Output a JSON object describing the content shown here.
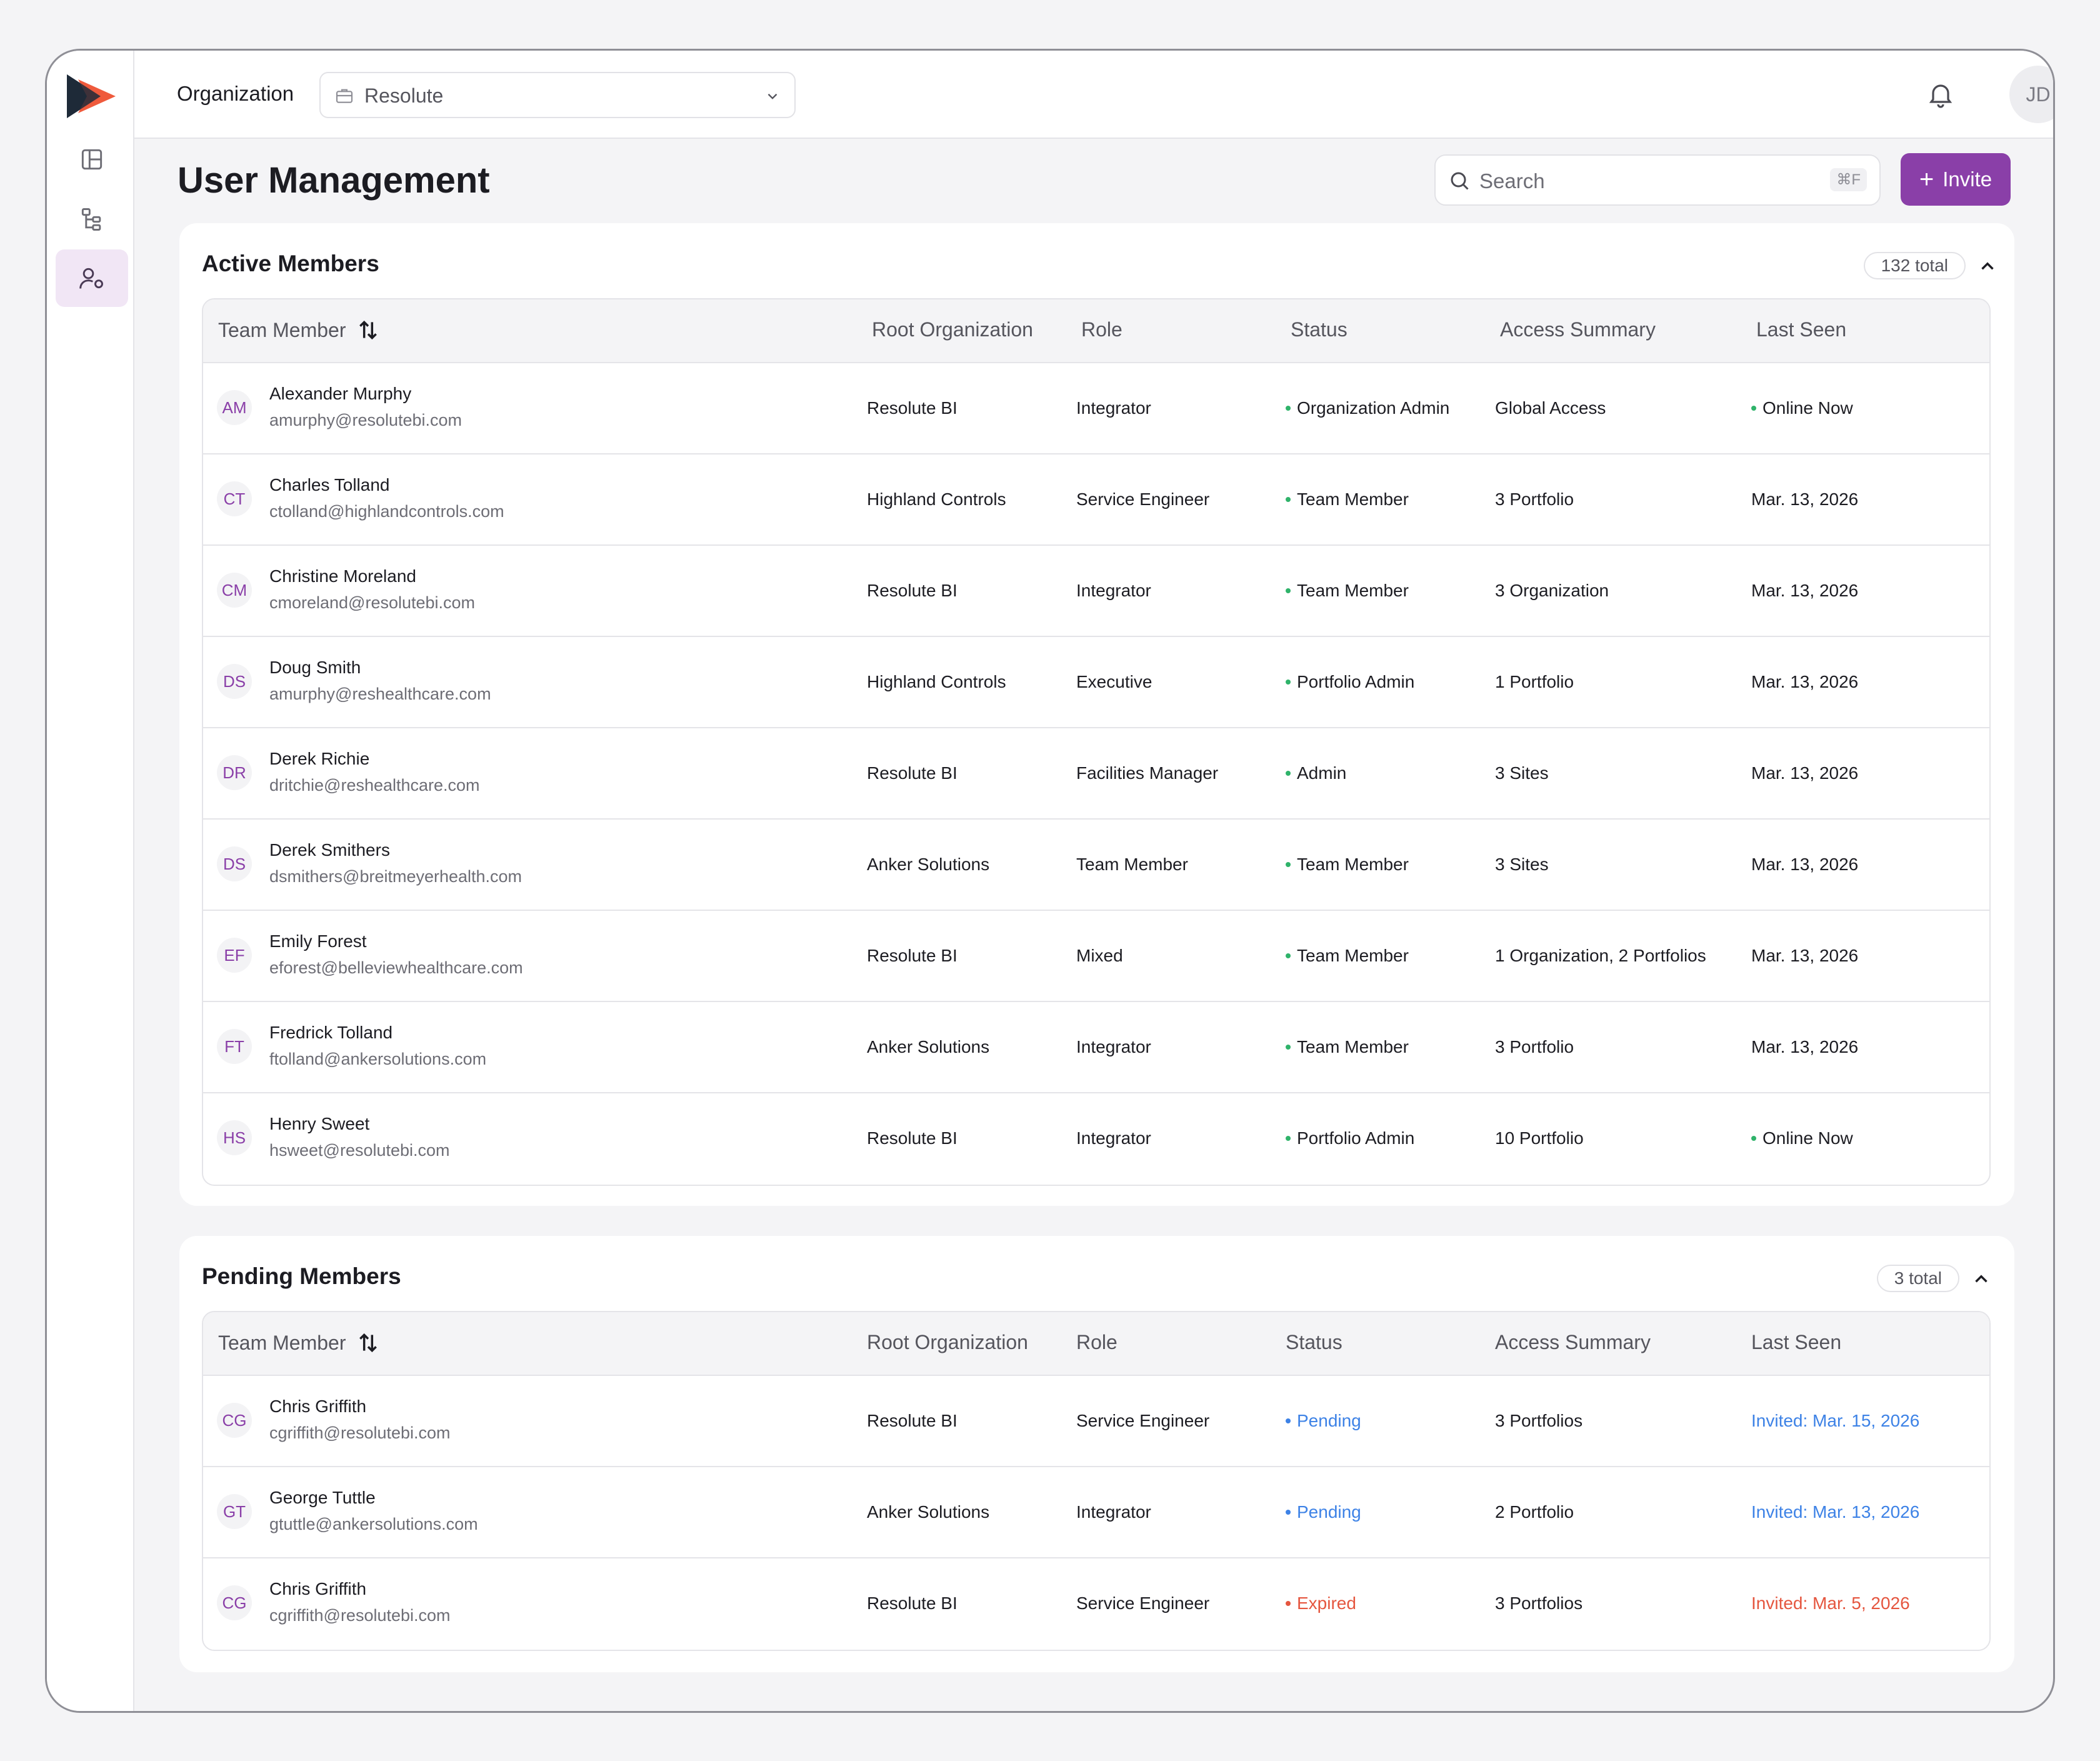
{
  "topbar": {
    "org_label": "Organization",
    "org_value": "Resolute",
    "avatar_initials": "JD"
  },
  "page": {
    "title": "User Management",
    "search_placeholder": "Search",
    "search_shortcut": "⌘F",
    "invite_label": "Invite"
  },
  "colors": {
    "accent": "#8a3fa8",
    "status_active": "#2fb36a",
    "status_pending": "#3d82e6",
    "status_expired": "#e5563f"
  },
  "icons": {
    "rail": [
      "layout-icon",
      "hierarchy-icon",
      "users-settings-icon"
    ],
    "topbar": [
      "briefcase-icon",
      "chevron-down-icon",
      "bell-icon"
    ]
  },
  "columns": {
    "member": "Team Member",
    "root_org": "Root Organization",
    "role": "Role",
    "status": "Status",
    "access": "Access Summary",
    "last_seen": "Last Seen"
  },
  "active": {
    "title": "Active Members",
    "count": "132 total",
    "rows": [
      {
        "initials": "AM",
        "name": "Alexander Murphy",
        "email": "amurphy@resolutebi.com",
        "org": "Resolute BI",
        "role": "Integrator",
        "status": "Organization Admin",
        "access": "Global Access",
        "last_seen": "Online Now",
        "online": true
      },
      {
        "initials": "CT",
        "name": "Charles Tolland",
        "email": "ctolland@highlandcontrols.com",
        "org": "Highland Controls",
        "role": "Service Engineer",
        "status": "Team Member",
        "access": "3 Portfolio",
        "last_seen": "Mar. 13, 2026",
        "online": false
      },
      {
        "initials": "CM",
        "name": "Christine Moreland",
        "email": "cmoreland@resolutebi.com",
        "org": "Resolute BI",
        "role": "Integrator",
        "status": "Team Member",
        "access": "3 Organization",
        "last_seen": "Mar. 13, 2026",
        "online": false
      },
      {
        "initials": "DS",
        "name": "Doug Smith",
        "email": "amurphy@reshealthcare.com",
        "org": "Highland Controls",
        "role": "Executive",
        "status": "Portfolio Admin",
        "access": "1 Portfolio",
        "last_seen": "Mar. 13, 2026",
        "online": false
      },
      {
        "initials": "DR",
        "name": "Derek Richie",
        "email": "dritchie@reshealthcare.com",
        "org": "Resolute BI",
        "role": "Facilities Manager",
        "status": "Admin",
        "access": "3 Sites",
        "last_seen": "Mar. 13, 2026",
        "online": false
      },
      {
        "initials": "DS",
        "name": "Derek Smithers",
        "email": "dsmithers@breitmeyerhealth.com",
        "org": "Anker Solutions",
        "role": "Team Member",
        "status": "Team Member",
        "access": "3 Sites",
        "last_seen": "Mar. 13, 2026",
        "online": false
      },
      {
        "initials": "EF",
        "name": "Emily Forest",
        "email": "eforest@belleviewhealthcare.com",
        "org": "Resolute BI",
        "role": "Mixed",
        "status": "Team Member",
        "access": "1 Organization, 2 Portfolios",
        "last_seen": "Mar. 13, 2026",
        "online": false
      },
      {
        "initials": "FT",
        "name": "Fredrick Tolland",
        "email": "ftolland@ankersolutions.com",
        "org": "Anker Solutions",
        "role": "Integrator",
        "status": "Team Member",
        "access": "3 Portfolio",
        "last_seen": "Mar. 13, 2026",
        "online": false
      },
      {
        "initials": "HS",
        "name": "Henry Sweet",
        "email": "hsweet@resolutebi.com",
        "org": "Resolute BI",
        "role": "Integrator",
        "status": "Portfolio Admin",
        "access": "10 Portfolio",
        "last_seen": "Online Now",
        "online": true
      }
    ]
  },
  "pending": {
    "title": "Pending Members",
    "count": "3 total",
    "rows": [
      {
        "initials": "CG",
        "name": "Chris Griffith",
        "email": "cgriffith@resolutebi.com",
        "org": "Resolute BI",
        "role": "Service Engineer",
        "status": "Pending",
        "access": "3 Portfolios",
        "last_seen": "Invited: Mar. 15, 2026",
        "state": "pending"
      },
      {
        "initials": "GT",
        "name": "George Tuttle",
        "email": "gtuttle@ankersolutions.com",
        "org": "Anker Solutions",
        "role": "Integrator",
        "status": "Pending",
        "access": "2 Portfolio",
        "last_seen": "Invited: Mar. 13, 2026",
        "state": "pending"
      },
      {
        "initials": "CG",
        "name": "Chris Griffith",
        "email": "cgriffith@resolutebi.com",
        "org": "Resolute BI",
        "role": "Service Engineer",
        "status": "Expired",
        "access": "3 Portfolios",
        "last_seen": "Invited: Mar. 5, 2026",
        "state": "expired"
      }
    ]
  }
}
